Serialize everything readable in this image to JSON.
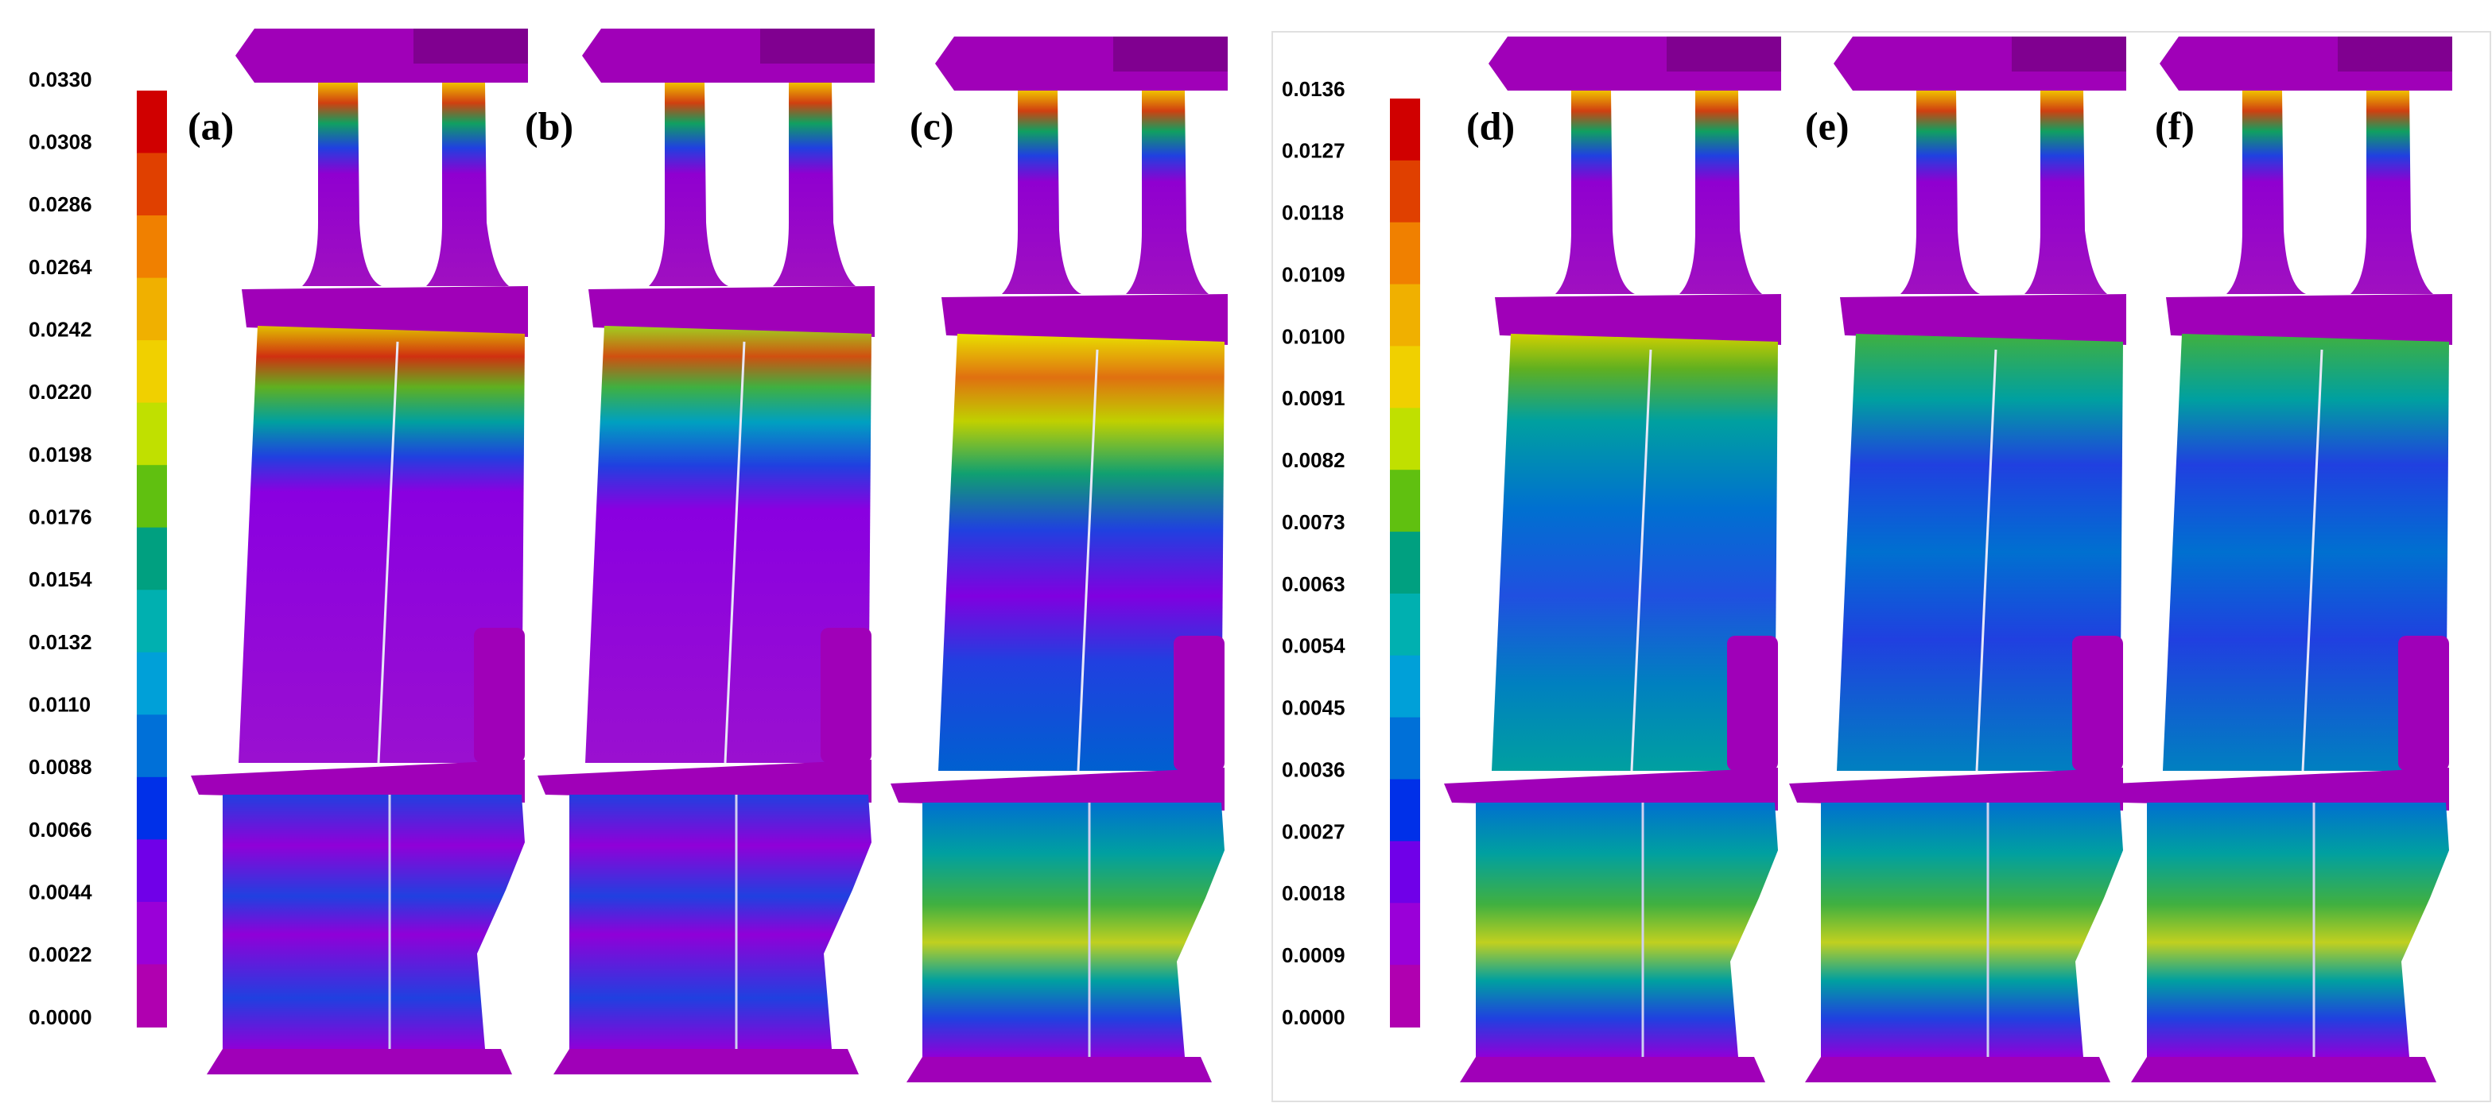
{
  "colorbars": [
    {
      "ticks": [
        "0.0330",
        "0.0308",
        "0.0286",
        "0.0264",
        "0.0242",
        "0.0220",
        "0.0198",
        "0.0176",
        "0.0154",
        "0.0132",
        "0.0110",
        "0.0088",
        "0.0066",
        "0.0044",
        "0.0022",
        "0.0000"
      ]
    },
    {
      "ticks": [
        "0.0136",
        "0.0127",
        "0.0118",
        "0.0109",
        "0.0100",
        "0.0091",
        "0.0082",
        "0.0073",
        "0.0063",
        "0.0054",
        "0.0045",
        "0.0036",
        "0.0027",
        "0.0018",
        "0.0009",
        "0.0000"
      ]
    }
  ],
  "panels": [
    {
      "label": "(a)"
    },
    {
      "label": "(b)"
    },
    {
      "label": "(c)"
    },
    {
      "label": "(d)"
    },
    {
      "label": "(e)"
    },
    {
      "label": "(f)"
    }
  ]
}
